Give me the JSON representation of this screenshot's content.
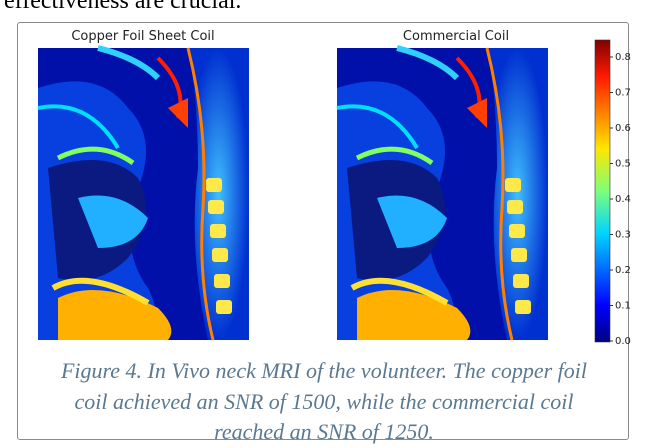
{
  "header_text": "effectiveness are crucial.",
  "figure": {
    "panels": [
      {
        "title": "Copper Foil Sheet Coil"
      },
      {
        "title": "Commercial Coil"
      }
    ],
    "colorbar": {
      "ticks": [
        "0.0",
        "0.1",
        "0.2",
        "0.3",
        "0.4",
        "0.5",
        "0.6",
        "0.7",
        "0.8"
      ]
    },
    "caption": [
      "Figure 4. In Vivo neck MRI of the volunteer. The copper foil",
      "coil achieved an SNR of 1500, while the commercial coil",
      "reached an SNR of 1250."
    ]
  }
}
